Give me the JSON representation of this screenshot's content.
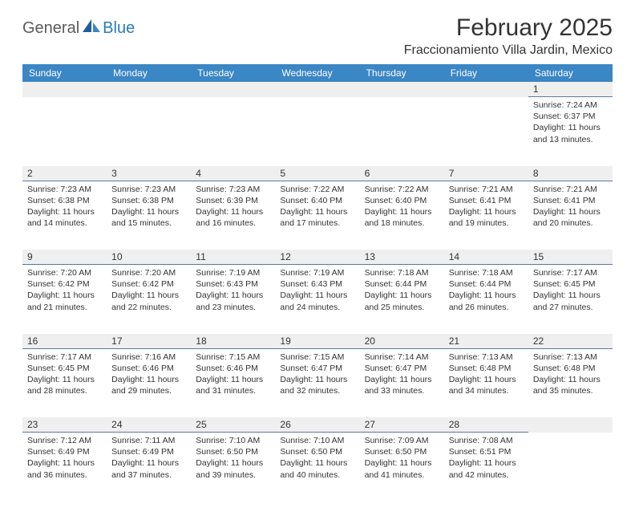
{
  "logo": {
    "general": "General",
    "blue": "Blue"
  },
  "title": "February 2025",
  "location": "Fraccionamiento Villa Jardin, Mexico",
  "colors": {
    "header_bg": "#3b86c4",
    "header_text": "#ffffff",
    "border": "#5a7a9a",
    "daynum_bg": "#efefef",
    "logo_general": "#5a5a5a",
    "logo_blue": "#2a7ab8",
    "text": "#333333"
  },
  "weekdays": [
    "Sunday",
    "Monday",
    "Tuesday",
    "Wednesday",
    "Thursday",
    "Friday",
    "Saturday"
  ],
  "weeks": [
    [
      {
        "num": "",
        "lines": []
      },
      {
        "num": "",
        "lines": []
      },
      {
        "num": "",
        "lines": []
      },
      {
        "num": "",
        "lines": []
      },
      {
        "num": "",
        "lines": []
      },
      {
        "num": "",
        "lines": []
      },
      {
        "num": "1",
        "lines": [
          "Sunrise: 7:24 AM",
          "Sunset: 6:37 PM",
          "Daylight: 11 hours",
          "and 13 minutes."
        ]
      }
    ],
    [
      {
        "num": "2",
        "lines": [
          "Sunrise: 7:23 AM",
          "Sunset: 6:38 PM",
          "Daylight: 11 hours",
          "and 14 minutes."
        ]
      },
      {
        "num": "3",
        "lines": [
          "Sunrise: 7:23 AM",
          "Sunset: 6:38 PM",
          "Daylight: 11 hours",
          "and 15 minutes."
        ]
      },
      {
        "num": "4",
        "lines": [
          "Sunrise: 7:23 AM",
          "Sunset: 6:39 PM",
          "Daylight: 11 hours",
          "and 16 minutes."
        ]
      },
      {
        "num": "5",
        "lines": [
          "Sunrise: 7:22 AM",
          "Sunset: 6:40 PM",
          "Daylight: 11 hours",
          "and 17 minutes."
        ]
      },
      {
        "num": "6",
        "lines": [
          "Sunrise: 7:22 AM",
          "Sunset: 6:40 PM",
          "Daylight: 11 hours",
          "and 18 minutes."
        ]
      },
      {
        "num": "7",
        "lines": [
          "Sunrise: 7:21 AM",
          "Sunset: 6:41 PM",
          "Daylight: 11 hours",
          "and 19 minutes."
        ]
      },
      {
        "num": "8",
        "lines": [
          "Sunrise: 7:21 AM",
          "Sunset: 6:41 PM",
          "Daylight: 11 hours",
          "and 20 minutes."
        ]
      }
    ],
    [
      {
        "num": "9",
        "lines": [
          "Sunrise: 7:20 AM",
          "Sunset: 6:42 PM",
          "Daylight: 11 hours",
          "and 21 minutes."
        ]
      },
      {
        "num": "10",
        "lines": [
          "Sunrise: 7:20 AM",
          "Sunset: 6:42 PM",
          "Daylight: 11 hours",
          "and 22 minutes."
        ]
      },
      {
        "num": "11",
        "lines": [
          "Sunrise: 7:19 AM",
          "Sunset: 6:43 PM",
          "Daylight: 11 hours",
          "and 23 minutes."
        ]
      },
      {
        "num": "12",
        "lines": [
          "Sunrise: 7:19 AM",
          "Sunset: 6:43 PM",
          "Daylight: 11 hours",
          "and 24 minutes."
        ]
      },
      {
        "num": "13",
        "lines": [
          "Sunrise: 7:18 AM",
          "Sunset: 6:44 PM",
          "Daylight: 11 hours",
          "and 25 minutes."
        ]
      },
      {
        "num": "14",
        "lines": [
          "Sunrise: 7:18 AM",
          "Sunset: 6:44 PM",
          "Daylight: 11 hours",
          "and 26 minutes."
        ]
      },
      {
        "num": "15",
        "lines": [
          "Sunrise: 7:17 AM",
          "Sunset: 6:45 PM",
          "Daylight: 11 hours",
          "and 27 minutes."
        ]
      }
    ],
    [
      {
        "num": "16",
        "lines": [
          "Sunrise: 7:17 AM",
          "Sunset: 6:45 PM",
          "Daylight: 11 hours",
          "and 28 minutes."
        ]
      },
      {
        "num": "17",
        "lines": [
          "Sunrise: 7:16 AM",
          "Sunset: 6:46 PM",
          "Daylight: 11 hours",
          "and 29 minutes."
        ]
      },
      {
        "num": "18",
        "lines": [
          "Sunrise: 7:15 AM",
          "Sunset: 6:46 PM",
          "Daylight: 11 hours",
          "and 31 minutes."
        ]
      },
      {
        "num": "19",
        "lines": [
          "Sunrise: 7:15 AM",
          "Sunset: 6:47 PM",
          "Daylight: 11 hours",
          "and 32 minutes."
        ]
      },
      {
        "num": "20",
        "lines": [
          "Sunrise: 7:14 AM",
          "Sunset: 6:47 PM",
          "Daylight: 11 hours",
          "and 33 minutes."
        ]
      },
      {
        "num": "21",
        "lines": [
          "Sunrise: 7:13 AM",
          "Sunset: 6:48 PM",
          "Daylight: 11 hours",
          "and 34 minutes."
        ]
      },
      {
        "num": "22",
        "lines": [
          "Sunrise: 7:13 AM",
          "Sunset: 6:48 PM",
          "Daylight: 11 hours",
          "and 35 minutes."
        ]
      }
    ],
    [
      {
        "num": "23",
        "lines": [
          "Sunrise: 7:12 AM",
          "Sunset: 6:49 PM",
          "Daylight: 11 hours",
          "and 36 minutes."
        ]
      },
      {
        "num": "24",
        "lines": [
          "Sunrise: 7:11 AM",
          "Sunset: 6:49 PM",
          "Daylight: 11 hours",
          "and 37 minutes."
        ]
      },
      {
        "num": "25",
        "lines": [
          "Sunrise: 7:10 AM",
          "Sunset: 6:50 PM",
          "Daylight: 11 hours",
          "and 39 minutes."
        ]
      },
      {
        "num": "26",
        "lines": [
          "Sunrise: 7:10 AM",
          "Sunset: 6:50 PM",
          "Daylight: 11 hours",
          "and 40 minutes."
        ]
      },
      {
        "num": "27",
        "lines": [
          "Sunrise: 7:09 AM",
          "Sunset: 6:50 PM",
          "Daylight: 11 hours",
          "and 41 minutes."
        ]
      },
      {
        "num": "28",
        "lines": [
          "Sunrise: 7:08 AM",
          "Sunset: 6:51 PM",
          "Daylight: 11 hours",
          "and 42 minutes."
        ]
      },
      {
        "num": "",
        "lines": []
      }
    ]
  ]
}
